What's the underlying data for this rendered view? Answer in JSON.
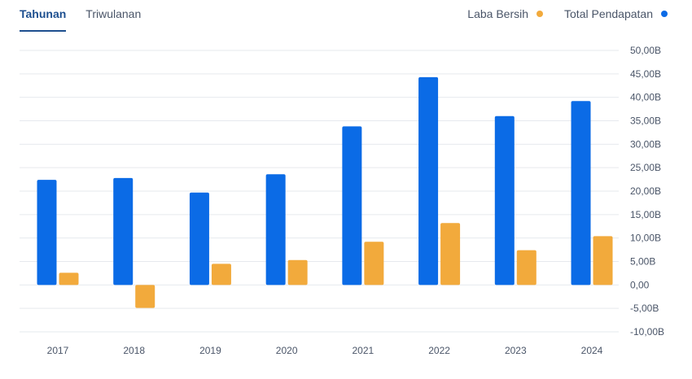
{
  "tabs": [
    {
      "label": "Tahunan",
      "active": true
    },
    {
      "label": "Triwulanan",
      "active": false
    }
  ],
  "colors": {
    "total_pendapatan": "#0b6be6",
    "laba_bersih": "#f2aa3c",
    "grid": "#e6e9ee",
    "axis_text": "#4a5568"
  },
  "chart_data": {
    "type": "bar",
    "categories": [
      "2017",
      "2018",
      "2019",
      "2020",
      "2021",
      "2022",
      "2023",
      "2024"
    ],
    "series": [
      {
        "name": "Total Pendapatan",
        "values": [
          22.4,
          22.8,
          19.7,
          23.6,
          33.8,
          44.3,
          36.0,
          39.2
        ]
      },
      {
        "name": "Laba Bersih",
        "values": [
          2.6,
          -4.9,
          4.5,
          5.3,
          9.2,
          13.2,
          7.4,
          10.4
        ]
      }
    ],
    "legend": [
      "Laba Bersih",
      "Total Pendapatan"
    ],
    "legend_position": "top-right",
    "yticks": [
      "50,00B",
      "45,00B",
      "40,00B",
      "35,00B",
      "30,00B",
      "25,00B",
      "20,00B",
      "15,00B",
      "10,00B",
      "5,00B",
      "0,00",
      "-5,00B",
      "-10,00B"
    ],
    "ylim": [
      -10,
      50
    ],
    "grid": true
  }
}
